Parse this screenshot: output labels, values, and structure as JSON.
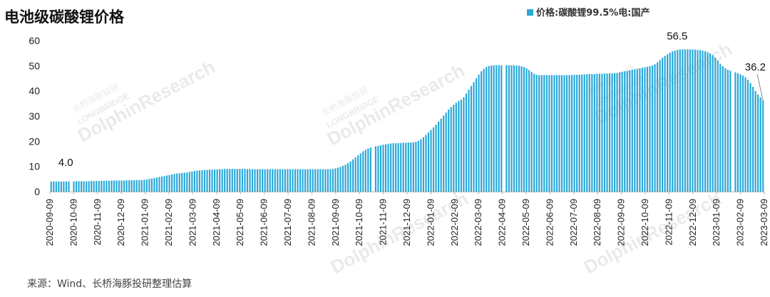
{
  "colors": {
    "bar": "#29a8d8",
    "axis": "#b0b0b0",
    "annotation_line": "#888888"
  },
  "watermark": {
    "brand": "DolphinResearch",
    "sub": "LONGBRIDGE",
    "cn": "长桥海豚投研"
  },
  "chart_data": {
    "type": "bar",
    "title": "电池级碳酸锂价格",
    "xlabel": "",
    "ylabel": "",
    "ylim": [
      0,
      60
    ],
    "yticks": [
      0,
      10,
      20,
      30,
      40,
      50,
      60
    ],
    "x_ticks": [
      "2020-09-09",
      "2020-10-09",
      "2020-11-09",
      "2020-12-09",
      "2021-01-09",
      "2021-02-09",
      "2021-03-09",
      "2021-04-09",
      "2021-05-09",
      "2021-06-09",
      "2021-07-09",
      "2021-08-09",
      "2021-09-09",
      "2021-10-09",
      "2021-11-09",
      "2021-12-09",
      "2022-01-09",
      "2022-02-09",
      "2022-03-09",
      "2022-04-09",
      "2022-05-09",
      "2022-06-09",
      "2022-07-09",
      "2022-08-09",
      "2022-09-09",
      "2022-10-09",
      "2022-11-09",
      "2022-12-09",
      "2023-01-09",
      "2023-02-09",
      "2023-03-09"
    ],
    "legend": {
      "position": "top-right"
    },
    "series": [
      {
        "name": "价格:碳酸锂99.5%电:国产",
        "x_start": "2020-09-09",
        "x_end": "2023-03-09",
        "values": [
          4.0,
          4.0,
          4.0,
          4.0,
          4.0,
          4.0,
          4.0,
          4.0,
          4.0,
          4.0,
          4.1,
          4.1,
          4.1,
          4.1,
          4.1,
          4.1,
          4.2,
          4.2,
          4.2,
          4.2,
          4.3,
          4.3,
          4.3,
          4.3,
          4.4,
          4.4,
          4.4,
          4.4,
          4.4,
          4.4,
          4.5,
          4.5,
          4.5,
          4.5,
          4.6,
          4.6,
          4.6,
          4.7,
          4.8,
          5.0,
          5.2,
          5.4,
          5.6,
          5.8,
          6.0,
          6.2,
          6.4,
          6.6,
          6.8,
          7.0,
          7.2,
          7.3,
          7.4,
          7.5,
          7.6,
          7.8,
          8.0,
          8.2,
          8.3,
          8.4,
          8.5,
          8.6,
          8.6,
          8.7,
          8.7,
          8.8,
          8.8,
          8.9,
          8.9,
          9.0,
          9.0,
          9.0,
          9.0,
          9.0,
          9.0,
          9.0,
          9.0,
          9.0,
          8.9,
          8.9,
          8.9,
          8.9,
          8.9,
          8.9,
          8.9,
          8.9,
          8.9,
          8.9,
          8.9,
          8.9,
          8.9,
          8.9,
          8.9,
          8.9,
          8.9,
          8.9,
          8.9,
          8.9,
          8.9,
          8.9,
          8.9,
          8.9,
          8.9,
          8.9,
          8.9,
          8.9,
          8.9,
          8.9,
          8.9,
          8.9,
          8.9,
          8.9,
          9.0,
          9.2,
          9.5,
          9.8,
          10.2,
          10.7,
          11.3,
          12.0,
          12.8,
          13.6,
          14.4,
          15.2,
          16.0,
          16.6,
          17.1,
          17.5,
          17.8,
          18.0,
          18.2,
          18.4,
          18.6,
          18.8,
          19.0,
          19.1,
          19.2,
          19.2,
          19.3,
          19.3,
          19.4,
          19.4,
          19.5,
          19.5,
          19.6,
          19.8,
          20.2,
          20.8,
          21.6,
          22.5,
          23.5,
          24.5,
          25.5,
          26.6,
          27.8,
          29.0,
          30.2,
          31.4,
          32.6,
          33.6,
          34.5,
          35.3,
          36.0,
          36.5,
          37.5,
          39.0,
          40.5,
          42.0,
          43.5,
          45.0,
          46.5,
          47.8,
          48.8,
          49.5,
          49.9,
          50.1,
          50.2,
          50.2,
          50.2,
          50.2,
          50.2,
          50.2,
          50.2,
          50.2,
          50.2,
          50.1,
          50.0,
          49.8,
          49.5,
          49.0,
          48.3,
          47.5,
          46.8,
          46.4,
          46.3,
          46.3,
          46.3,
          46.3,
          46.3,
          46.3,
          46.3,
          46.3,
          46.3,
          46.3,
          46.3,
          46.3,
          46.3,
          46.3,
          46.4,
          46.4,
          46.5,
          46.5,
          46.6,
          46.6,
          46.7,
          46.7,
          46.7,
          46.8,
          46.8,
          46.8,
          46.9,
          46.9,
          47.0,
          47.0,
          47.1,
          47.2,
          47.4,
          47.6,
          47.8,
          48.0,
          48.2,
          48.4,
          48.6,
          48.8,
          49.0,
          49.2,
          49.4,
          49.6,
          49.8,
          50.1,
          50.6,
          51.3,
          52.2,
          53.1,
          53.9,
          54.6,
          55.2,
          55.7,
          56.0,
          56.3,
          56.5,
          56.5,
          56.5,
          56.5,
          56.5,
          56.5,
          56.4,
          56.3,
          56.2,
          56.0,
          55.8,
          55.4,
          54.9,
          54.2,
          53.2,
          52.0,
          50.8,
          49.8,
          49.0,
          48.4,
          48.0,
          47.7,
          47.4,
          47.0,
          46.6,
          46.1,
          45.4,
          44.4,
          43.1,
          41.6,
          40.0,
          38.6,
          37.4,
          36.2
        ]
      }
    ],
    "annotations": [
      {
        "text": "4.0",
        "x": "2020-09-09",
        "y": 4.0
      },
      {
        "text": "56.5",
        "x": "2022-12-09",
        "y": 56.5
      },
      {
        "text": "36.2",
        "x": "2023-03-09",
        "y": 36.2
      }
    ],
    "source": "来源：Wind、长桥海豚投研整理估算"
  }
}
